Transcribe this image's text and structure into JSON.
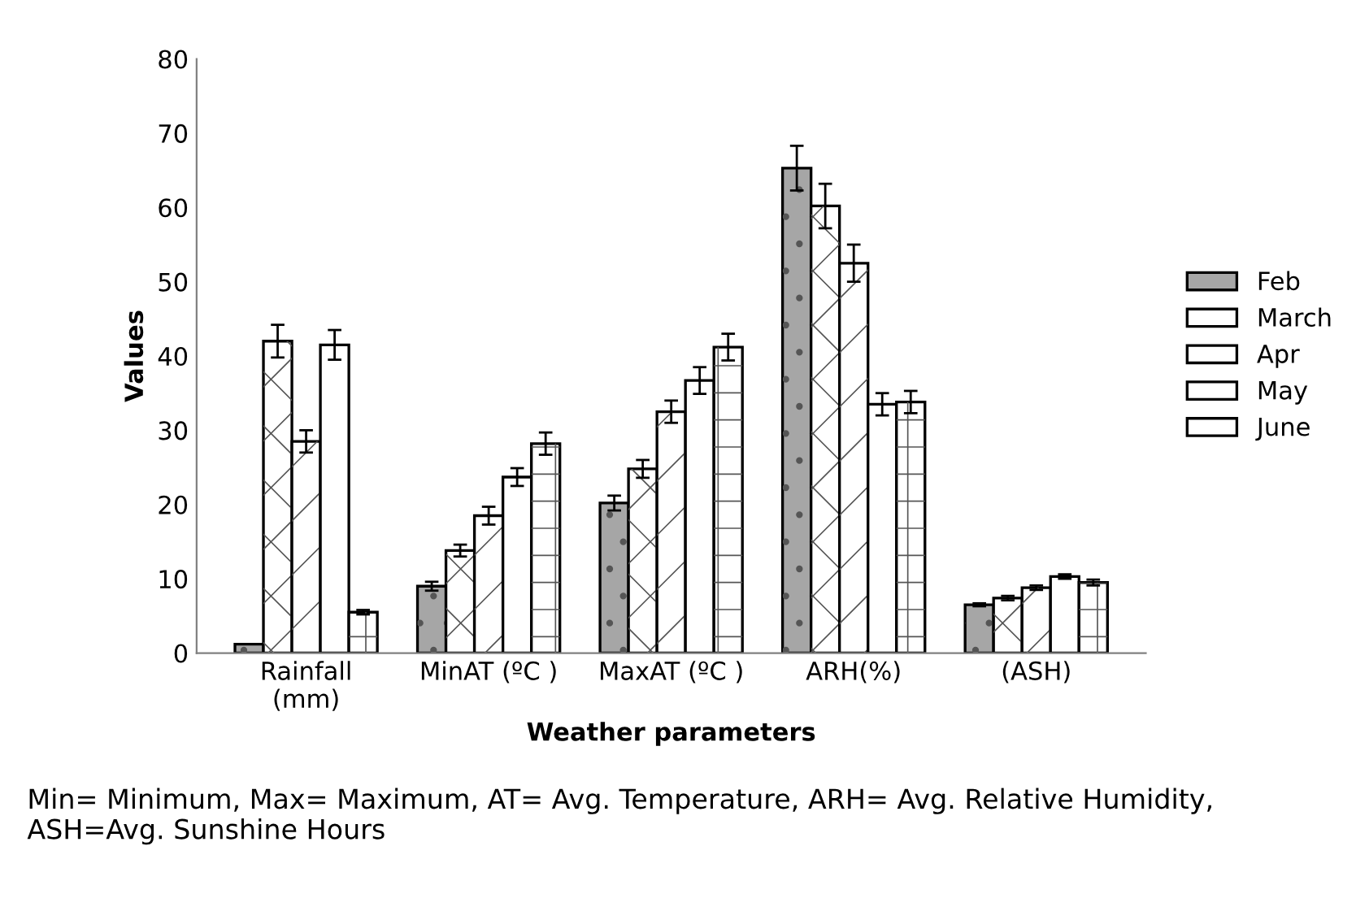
{
  "chart_data": {
    "type": "bar",
    "xlabel": "Weather parameters",
    "ylabel": "Values",
    "categories": [
      "Rainfall\n(mm)",
      "MinAT (ºC )",
      "MaxAT (ºC )",
      "ARH(%)",
      "(ASH)"
    ],
    "series": [
      {
        "name": "Feb",
        "color": "#a6a6a6",
        "values": [
          1.2,
          9,
          20.2,
          65.3,
          6.5
        ],
        "errors": [
          null,
          0.6,
          1,
          3,
          0.2
        ]
      },
      {
        "name": "March",
        "color": "#ffffff",
        "values": [
          42,
          13.8,
          24.8,
          60.2,
          7.4
        ],
        "errors": [
          2.2,
          0.8,
          1.2,
          3,
          0.3
        ]
      },
      {
        "name": "Apr",
        "color": "#ffffff",
        "values": [
          28.5,
          18.5,
          32.5,
          52.5,
          8.8
        ],
        "errors": [
          1.5,
          1.2,
          1.5,
          2.5,
          0.3
        ]
      },
      {
        "name": "May",
        "color": "#ffffff",
        "values": [
          41.5,
          23.7,
          36.7,
          33.5,
          10.3
        ],
        "errors": [
          2,
          1.2,
          1.8,
          1.5,
          0.3
        ]
      },
      {
        "name": "June",
        "color": "#ffffff",
        "values": [
          5.5,
          28.2,
          41.2,
          33.8,
          9.5
        ],
        "errors": [
          0.3,
          1.5,
          1.8,
          1.5,
          0.4
        ]
      }
    ],
    "ylim": [
      0,
      80
    ],
    "yticks": [
      0,
      10,
      20,
      30,
      40,
      50,
      60,
      70,
      80
    ],
    "grid": false,
    "legend": "right",
    "annotations": [
      "Min= Minimum, Max= Maximum, AT= Avg. Temperature, ARH= Avg. Relative Humidity, ASH=Avg. Sunshine Hours"
    ]
  }
}
